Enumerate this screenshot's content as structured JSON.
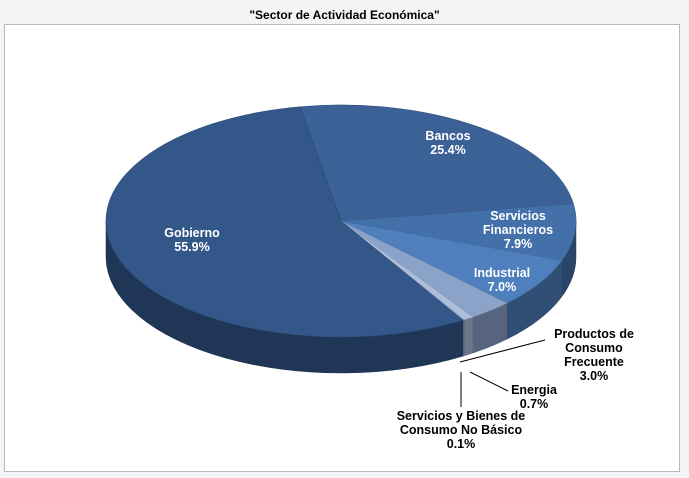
{
  "chart_data": {
    "type": "pie",
    "title": "\"Sector de Actividad Económica\"",
    "slices": [
      {
        "label": "Bancos",
        "value": 25.4,
        "value_label": "25.4%",
        "color": "#3b6196",
        "label_color": "#ffffff"
      },
      {
        "label": "Servicios Financieros",
        "value": 7.9,
        "value_label": "7.9%",
        "color": "#4470aa",
        "label_color": "#ffffff"
      },
      {
        "label": "Industrial",
        "value": 7.0,
        "value_label": "7.0%",
        "color": "#4f7fbd",
        "label_color": "#ffffff"
      },
      {
        "label": "Productos de Consumo Frecuente",
        "value": 3.0,
        "value_label": "3.0%",
        "color": "#8ba3c9",
        "label_color": "#000000"
      },
      {
        "label": "Energia",
        "value": 0.7,
        "value_label": "0.7%",
        "color": "#aebfdb",
        "label_color": "#000000"
      },
      {
        "label": "Servicios y Bienes de Consumo No Básico",
        "value": 0.1,
        "value_label": "0.1%",
        "color": "#9aaed0",
        "label_color": "#000000"
      },
      {
        "label": "Gobierno",
        "value": 55.9,
        "value_label": "55.9%",
        "color": "#34578a",
        "label_color": "#ffffff"
      }
    ]
  }
}
